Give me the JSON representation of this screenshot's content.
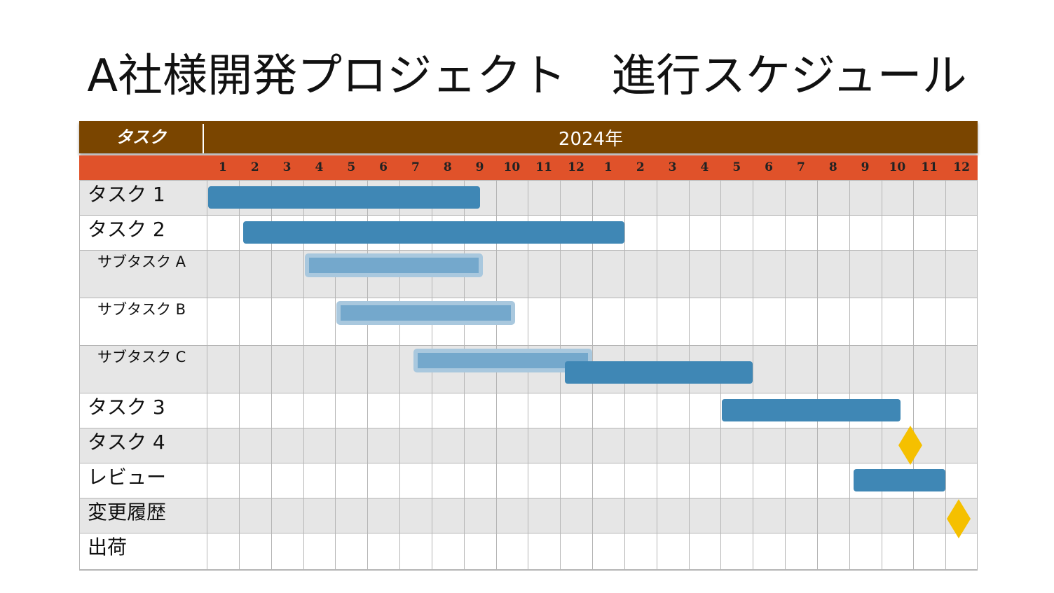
{
  "title": "A社様開発プロジェクト　進行スケジュール",
  "header": {
    "task_column": "タスク",
    "year": "2024年"
  },
  "months": [
    "1",
    "2",
    "3",
    "4",
    "5",
    "6",
    "7",
    "8",
    "9",
    "10",
    "11",
    "12",
    "1",
    "2",
    "3",
    "4",
    "5",
    "6",
    "7",
    "8",
    "9",
    "10",
    "11",
    "12"
  ],
  "tasks": [
    {
      "label": "タスク 1",
      "level": "main"
    },
    {
      "label": "タスク 2",
      "level": "main"
    },
    {
      "label": "サブタスク A",
      "level": "sub"
    },
    {
      "label": "サブタスク B",
      "level": "sub"
    },
    {
      "label": "サブタスク C",
      "level": "sub"
    },
    {
      "label": "タスク 3",
      "level": "main"
    },
    {
      "label": "タスク 4",
      "level": "main"
    },
    {
      "label": "レビュー",
      "level": "main"
    },
    {
      "label": "変更履歴",
      "level": "main"
    },
    {
      "label": "出荷",
      "level": "main"
    }
  ],
  "bars": [
    {
      "task": "タスク 1",
      "start_month": 1,
      "end_month": 9.5,
      "style": "solid"
    },
    {
      "task": "タスク 2",
      "start_month": 2.1,
      "end_month": 14,
      "style": "solid"
    },
    {
      "task": "サブタスク A",
      "start_month": 4,
      "end_month": 9.6,
      "style": "light"
    },
    {
      "task": "サブタスク B",
      "start_month": 5,
      "end_month": 10.6,
      "style": "light"
    },
    {
      "task": "サブタスク C",
      "start_month": 7.4,
      "end_month": 13,
      "style": "light"
    },
    {
      "task": "サブタスク C",
      "start_month": 12.1,
      "end_month": 18,
      "style": "solid"
    },
    {
      "task": "タスク 3",
      "start_month": 17,
      "end_month": 22.6,
      "style": "solid"
    },
    {
      "task": "レビュー",
      "start_month": 21.1,
      "end_month": 24,
      "style": "solid"
    }
  ],
  "milestones": [
    {
      "task": "タスク 4",
      "month": 22.9
    },
    {
      "task": "変更履歴",
      "month": 24.4
    }
  ],
  "colors": {
    "header_bg": "#7a4500",
    "month_bg": "#e0522a",
    "bar": "#3f87b5",
    "bar_light": "#74a8cc",
    "milestone": "#f5c000",
    "row_shade": "#e6e6e6",
    "grid": "#b5b5b5"
  }
}
